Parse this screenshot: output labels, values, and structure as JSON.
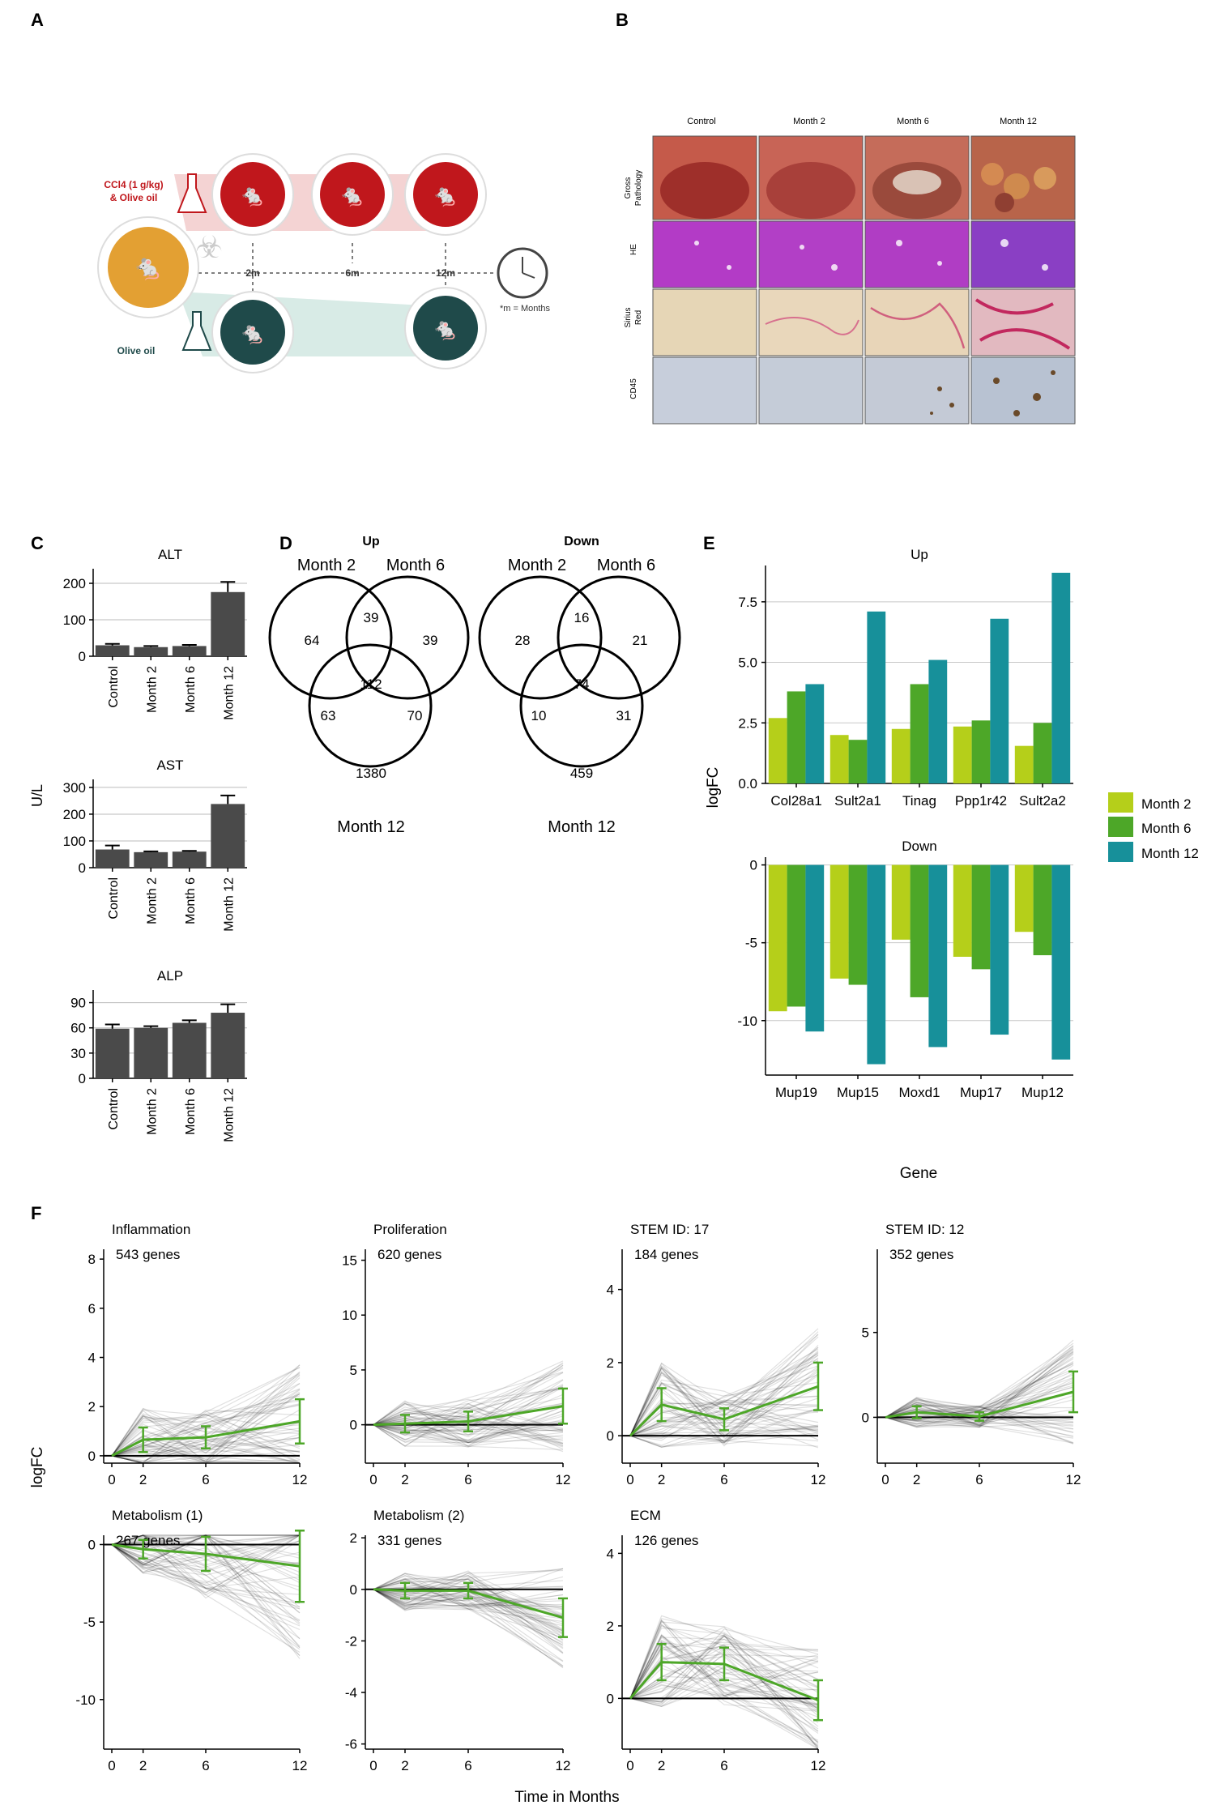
{
  "panel_letters": {
    "a": "A",
    "b": "B",
    "c": "C",
    "d": "D",
    "e": "E",
    "f": "F"
  },
  "panelA": {
    "treatment_label_1": "CCl4 (1 g/kg)",
    "treatment_label_2": "& Olive oil",
    "control_label": "Olive oil",
    "timepoints": [
      "2m",
      "6m",
      "12m"
    ],
    "months_note": "*m = Months",
    "colors": {
      "treated": "#c0171c",
      "control": "#1f4a4a",
      "start": "#e3a033"
    }
  },
  "panelB": {
    "columns": [
      "Control",
      "Month 2",
      "Month 6",
      "Month 12"
    ],
    "row_labels": [
      {
        "line1": "Gross",
        "line2": "Pathology"
      },
      {
        "line1": "HE",
        "line2": ""
      },
      {
        "line1": "Sirius",
        "line2": "Red"
      },
      {
        "line1": "CD45",
        "line2": ""
      }
    ]
  },
  "panelC": {
    "ylabel": "U/L",
    "categories": [
      "Control",
      "Month 2",
      "Month 6",
      "Month 12"
    ]
  },
  "panelD": {
    "set_labels": {
      "m2": "Month 2",
      "m6": "Month 6",
      "m12": "Month 12"
    },
    "up": {
      "title": "Up",
      "only2": "64",
      "only6": "39",
      "only12": "1380",
      "m2m6": "39",
      "m2m12": "63",
      "m6m12": "70",
      "all": "112"
    },
    "down": {
      "title": "Down",
      "only2": "28",
      "only6": "21",
      "only12": "459",
      "m2m6": "16",
      "m2m12": "10",
      "m6m12": "31",
      "all": "74"
    }
  },
  "panelE": {
    "xlabel": "Gene",
    "ylabel": "logFC",
    "legend": [
      {
        "name": "Month 2",
        "color": "#b5cf1a"
      },
      {
        "name": "Month 6",
        "color": "#4da728"
      },
      {
        "name": "Month 12",
        "color": "#17909a"
      }
    ]
  },
  "panelF": {
    "ylabel": "logFC",
    "xlabel": "Time in Months"
  },
  "chart_data": [
    {
      "type": "bar",
      "title": "ALT",
      "categories": [
        "Control",
        "Month 2",
        "Month 6",
        "Month 12"
      ],
      "values": [
        30,
        25,
        28,
        176
      ],
      "errors": [
        4,
        3,
        3,
        28
      ],
      "ylim": [
        0,
        240
      ],
      "yticks": [
        0,
        100,
        200
      ],
      "color": "#4a4a4a"
    },
    {
      "type": "bar",
      "title": "AST",
      "categories": [
        "Control",
        "Month 2",
        "Month 6",
        "Month 12"
      ],
      "values": [
        68,
        58,
        60,
        238
      ],
      "errors": [
        15,
        3,
        3,
        32
      ],
      "ylim": [
        0,
        330
      ],
      "yticks": [
        0,
        100,
        200,
        300
      ],
      "color": "#4a4a4a"
    },
    {
      "type": "bar",
      "title": "ALP",
      "categories": [
        "Control",
        "Month 2",
        "Month 6",
        "Month 12"
      ],
      "values": [
        59,
        60,
        66,
        78
      ],
      "errors": [
        5,
        2,
        3,
        10
      ],
      "ylim": [
        0,
        105
      ],
      "yticks": [
        0,
        30,
        60,
        90
      ],
      "color": "#4a4a4a"
    },
    {
      "type": "bar",
      "title": "Up",
      "categories": [
        "Col28a1",
        "Sult2a1",
        "Tinag",
        "Ppp1r42",
        "Sult2a2"
      ],
      "series": [
        {
          "name": "Month 2",
          "values": [
            2.7,
            2.0,
            2.25,
            2.35,
            1.55
          ]
        },
        {
          "name": "Month 6",
          "values": [
            3.8,
            1.8,
            4.1,
            2.6,
            2.5
          ]
        },
        {
          "name": "Month 12",
          "values": [
            4.1,
            7.1,
            5.1,
            6.8,
            8.7
          ]
        }
      ],
      "ylim": [
        0,
        9
      ],
      "yticks": [
        0.0,
        2.5,
        5.0,
        7.5
      ]
    },
    {
      "type": "bar",
      "title": "Down",
      "categories": [
        "Mup19",
        "Mup15",
        "Moxd1",
        "Mup17",
        "Mup12"
      ],
      "series": [
        {
          "name": "Month 2",
          "values": [
            -9.4,
            -7.3,
            -4.8,
            -5.9,
            -4.3
          ]
        },
        {
          "name": "Month 6",
          "values": [
            -9.1,
            -7.7,
            -8.5,
            -6.7,
            -5.8
          ]
        },
        {
          "name": "Month 12",
          "values": [
            -10.7,
            -12.8,
            -11.7,
            -10.9,
            -12.5
          ]
        }
      ],
      "ylim": [
        -13.5,
        0.5
      ],
      "yticks": [
        0,
        -5,
        -10
      ]
    },
    {
      "type": "line",
      "title": "Inflammation",
      "subtitle": "543 genes",
      "x": [
        0,
        2,
        6,
        12
      ],
      "mean": [
        0,
        0.65,
        0.75,
        1.4
      ],
      "error": [
        0,
        0.5,
        0.45,
        0.9
      ],
      "ylim": [
        -0.3,
        8.4
      ],
      "yticks": [
        0,
        2,
        4,
        6,
        8
      ]
    },
    {
      "type": "line",
      "title": "Proliferation",
      "subtitle": "620 genes",
      "x": [
        0,
        2,
        6,
        12
      ],
      "mean": [
        0,
        0.1,
        0.3,
        1.7
      ],
      "error": [
        0,
        0.8,
        0.9,
        1.6
      ],
      "ylim": [
        -3.5,
        16
      ],
      "yticks": [
        0,
        5,
        10,
        15
      ]
    },
    {
      "type": "line",
      "title": "STEM ID: 17",
      "subtitle": "184 genes",
      "x": [
        0,
        2,
        6,
        12
      ],
      "mean": [
        0,
        0.85,
        0.45,
        1.35
      ],
      "error": [
        0,
        0.45,
        0.3,
        0.65
      ],
      "ylim": [
        -0.75,
        5.1
      ],
      "yticks": [
        0,
        2,
        4
      ]
    },
    {
      "type": "line",
      "title": "STEM ID: 12",
      "subtitle": "352 genes",
      "x": [
        0,
        2,
        6,
        12
      ],
      "mean": [
        0,
        0.3,
        0.05,
        1.5
      ],
      "error": [
        0,
        0.35,
        0.25,
        1.2
      ],
      "ylim": [
        -2.7,
        9.9
      ],
      "yticks": [
        0,
        5
      ]
    },
    {
      "type": "line",
      "title": "Metabolism (1)",
      "subtitle": "267 genes",
      "x": [
        0,
        2,
        6,
        12
      ],
      "mean": [
        0,
        -0.3,
        -0.6,
        -1.4
      ],
      "error": [
        0,
        0.6,
        1.1,
        2.3
      ],
      "ylim": [
        -13.2,
        0.6
      ],
      "yticks": [
        0,
        -5,
        -10
      ]
    },
    {
      "type": "line",
      "title": "Metabolism (2)",
      "subtitle": "331 genes",
      "x": [
        0,
        2,
        6,
        12
      ],
      "mean": [
        0,
        -0.05,
        -0.05,
        -1.1
      ],
      "error": [
        0,
        0.3,
        0.3,
        0.75
      ],
      "ylim": [
        -6.2,
        2.1
      ],
      "yticks": [
        2,
        0,
        -2,
        -4,
        -6
      ]
    },
    {
      "type": "line",
      "title": "ECM",
      "subtitle": "126 genes",
      "x": [
        0,
        2,
        6,
        12
      ],
      "mean": [
        0,
        1.0,
        0.95,
        -0.05
      ],
      "error": [
        0,
        0.5,
        0.45,
        0.55
      ],
      "ylim": [
        -1.4,
        4.5
      ],
      "yticks": [
        0,
        2,
        4
      ]
    }
  ]
}
